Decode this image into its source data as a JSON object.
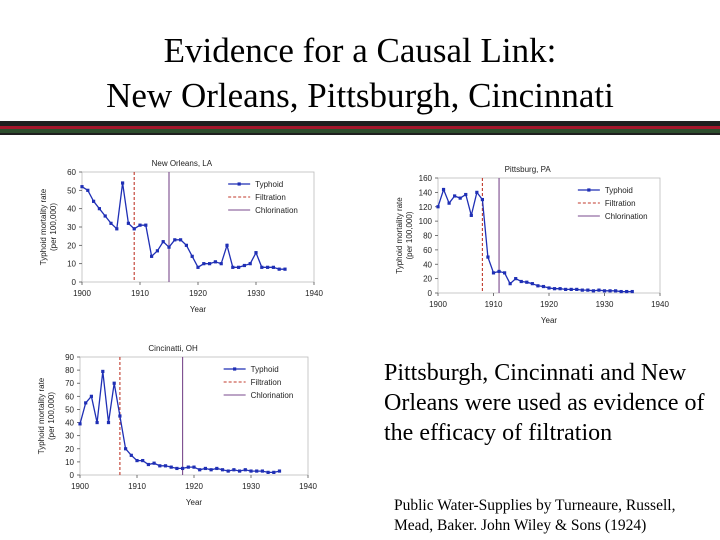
{
  "slide": {
    "title_line1": "Evidence for a Causal Link:",
    "title_line2": "New Orleans,  Pittsburgh, Cincinnati",
    "caption": "Pittsburgh, Cincinnati and New Orleans were used as evidence of the efficacy of filtration",
    "source": "Public Water-Supplies by Turneaure, Russell, Mead, Baker. John Wiley & Sons (1924)",
    "colors": {
      "typhoid": "#1f2fb5",
      "filtration": "#c0392b",
      "chlorination": "#7a4a8c",
      "rule_red": "#a6162c",
      "rule_green": "#2d4d2d"
    }
  },
  "chart_data": [
    {
      "type": "line",
      "title": "New Orleans, LA",
      "xlabel": "Year",
      "ylabel": "Typhoid mortality rate (per 100,000)",
      "xlim": [
        1900,
        1940
      ],
      "ylim": [
        0,
        60
      ],
      "xticks": [
        "1900",
        "1910",
        "1920",
        "1930",
        "1940"
      ],
      "yticks": [
        "0",
        "10",
        "20",
        "30",
        "40",
        "50",
        "60"
      ],
      "legend": [
        "Typhoid",
        "Filtration",
        "Chlorination"
      ],
      "series": [
        {
          "name": "Typhoid",
          "x": [
            1900,
            1901,
            1902,
            1903,
            1904,
            1905,
            1906,
            1907,
            1908,
            1909,
            1910,
            1911,
            1912,
            1913,
            1914,
            1915,
            1916,
            1917,
            1918,
            1919,
            1920,
            1921,
            1922,
            1923,
            1924,
            1925,
            1926,
            1927,
            1928,
            1929,
            1930,
            1931,
            1932,
            1933,
            1934,
            1935
          ],
          "y": [
            52,
            50,
            44,
            40,
            36,
            32,
            29,
            54,
            32,
            29,
            31,
            31,
            14,
            17,
            22,
            19,
            23,
            23,
            20,
            14,
            8,
            10,
            10,
            11,
            10,
            20,
            8,
            8,
            9,
            10,
            16,
            8,
            8,
            8,
            7,
            7
          ]
        }
      ],
      "filtration_year": 1909,
      "chlorination_year": 1915
    },
    {
      "type": "line",
      "title": "Pittsburg, PA",
      "xlabel": "Year",
      "ylabel": "Typhoid mortality rate (per 100,000)",
      "xlim": [
        1900,
        1940
      ],
      "ylim": [
        0,
        160
      ],
      "xticks": [
        "1900",
        "1910",
        "1920",
        "1930",
        "1940"
      ],
      "yticks": [
        "0",
        "20",
        "40",
        "60",
        "80",
        "100",
        "120",
        "140",
        "160"
      ],
      "legend": [
        "Typhoid",
        "Filtration",
        "Chlorination"
      ],
      "series": [
        {
          "name": "Typhoid",
          "x": [
            1900,
            1901,
            1902,
            1903,
            1904,
            1905,
            1906,
            1907,
            1908,
            1909,
            1910,
            1911,
            1912,
            1913,
            1914,
            1915,
            1916,
            1917,
            1918,
            1919,
            1920,
            1921,
            1922,
            1923,
            1924,
            1925,
            1926,
            1927,
            1928,
            1929,
            1930,
            1931,
            1932,
            1933,
            1934,
            1935
          ],
          "y": [
            120,
            144,
            125,
            135,
            132,
            137,
            108,
            140,
            130,
            50,
            28,
            30,
            28,
            13,
            20,
            16,
            15,
            13,
            10,
            9,
            7,
            6,
            6,
            5,
            5,
            5,
            4,
            4,
            3,
            4,
            3,
            3,
            3,
            2,
            2,
            2
          ]
        }
      ],
      "filtration_year": 1908,
      "chlorination_year": 1911
    },
    {
      "type": "line",
      "title": "Cincinatti, OH",
      "xlabel": "Year",
      "ylabel": "Typhoid mortality rate (per 100,000)",
      "xlim": [
        1900,
        1940
      ],
      "ylim": [
        0,
        90
      ],
      "xticks": [
        "1900",
        "1910",
        "1920",
        "1930",
        "1940"
      ],
      "yticks": [
        "0",
        "10",
        "20",
        "30",
        "40",
        "50",
        "60",
        "70",
        "80",
        "90"
      ],
      "legend": [
        "Typhoid",
        "Filtration",
        "Chlorination"
      ],
      "series": [
        {
          "name": "Typhoid",
          "x": [
            1900,
            1901,
            1902,
            1903,
            1904,
            1905,
            1906,
            1907,
            1908,
            1909,
            1910,
            1911,
            1912,
            1913,
            1914,
            1915,
            1916,
            1917,
            1918,
            1919,
            1920,
            1921,
            1922,
            1923,
            1924,
            1925,
            1926,
            1927,
            1928,
            1929,
            1930,
            1931,
            1932,
            1933,
            1934,
            1935
          ],
          "y": [
            39,
            55,
            60,
            40,
            79,
            40,
            70,
            45,
            20,
            15,
            11,
            11,
            8,
            9,
            7,
            7,
            6,
            5,
            5,
            6,
            6,
            4,
            5,
            4,
            5,
            4,
            3,
            4,
            3,
            4,
            3,
            3,
            3,
            2,
            2,
            3
          ]
        }
      ],
      "filtration_year": 1907,
      "chlorination_year": 1918
    }
  ]
}
